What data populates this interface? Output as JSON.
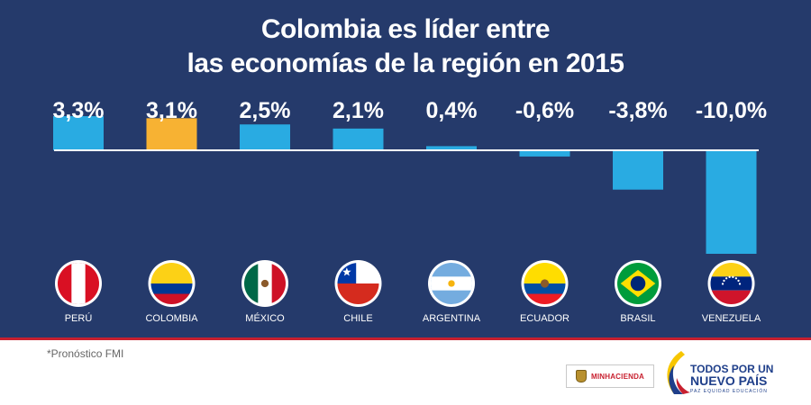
{
  "title_lines": [
    "Colombia es líder entre",
    "las economías de la región en 2015"
  ],
  "footnote": "*Pronóstico FMI",
  "colors": {
    "background": "#253a6b",
    "bar_default": "#29abe2",
    "bar_highlight": "#f7b233",
    "baseline": "#ffffff",
    "label_text": "#ffffff",
    "divider": "#c8202f"
  },
  "chart_data": {
    "type": "bar",
    "title": "Colombia es líder entre las economías de la región en 2015",
    "categories": [
      "PERÚ",
      "COLOMBIA",
      "MÉXICO",
      "CHILE",
      "ARGENTINA",
      "ECUADOR",
      "BRASIL",
      "VENEZUELA"
    ],
    "values": [
      3.3,
      3.1,
      2.5,
      2.1,
      0.4,
      -0.6,
      -3.8,
      -10.0
    ],
    "value_labels": [
      "3,3%",
      "3,1%",
      "2,5%",
      "2,1%",
      "0,4%",
      "-0,6%",
      "-3,8%",
      "-10,0%"
    ],
    "highlight": "COLOMBIA",
    "flags": [
      "flag-peru-icon",
      "flag-colombia-icon",
      "flag-mexico-icon",
      "flag-chile-icon",
      "flag-argentina-icon",
      "flag-ecuador-icon",
      "flag-brazil-icon",
      "flag-venezuela-icon"
    ],
    "xlabel": "",
    "ylabel": "",
    "grid": false
  },
  "logos": {
    "ministry": "MINHACIENDA",
    "government_line1": "TODOS POR UN",
    "government_line2": "NUEVO PAÍS",
    "government_tagline": "PAZ  EQUIDAD  EDUCACIÓN"
  }
}
